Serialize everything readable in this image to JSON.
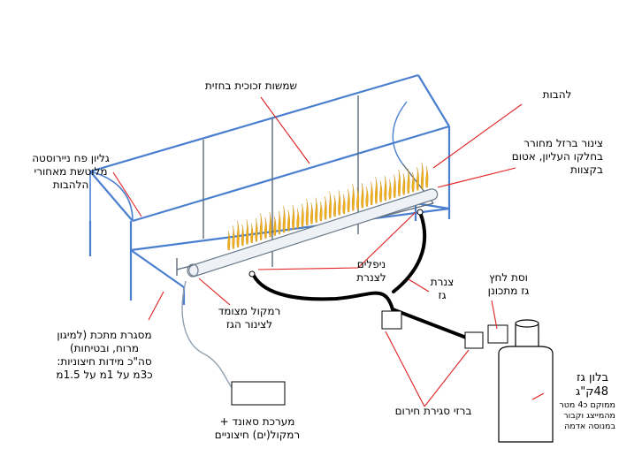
{
  "labels": {
    "glass_panes": [
      "שמשות זכוכית בחזית"
    ],
    "flames": [
      "להבות"
    ],
    "iron_pipe": [
      "צינור ברזל מחורר",
      "בחלקו העליון, אטום",
      "בקצוות"
    ],
    "plexiglass_sheet": [
      "גליון פח ניירוסטה",
      "מלוטשת מאחורי",
      "הלהבות"
    ],
    "nipples": [
      "ניפלים",
      "לצנרת"
    ],
    "gas_pipe": [
      "צנרת",
      "גז"
    ],
    "regulator": [
      "וסת לחץ",
      "גז מתכונן"
    ],
    "speaker": [
      "רמקול מצומד",
      "לצינור הגז"
    ],
    "metal_frame": [
      "מסגרת מתכת (למיגון",
      "מרוח, ובטיחות)",
      "סה\"כ מידות חיצוניות:",
      "כ3מ על 1מ על 1.5מ"
    ],
    "gas_tank": [
      "בלון גז",
      "48ק\"ג"
    ],
    "gas_tank_note": [
      "ממוקם כ4 מטר",
      "מהמייצג וקבור",
      "במנוסה אדמה"
    ],
    "shutoff_valves": [
      "ברזי סגירת חירום"
    ],
    "sound_system": [
      "מערכת סאונד +",
      "רמקול(ים) חיצוניים"
    ]
  },
  "colors": {
    "frame": "#4a7fd0",
    "leader": "#e02020",
    "flame": "#f0b020",
    "hose": "#000000",
    "wire": "#90a0b0"
  }
}
